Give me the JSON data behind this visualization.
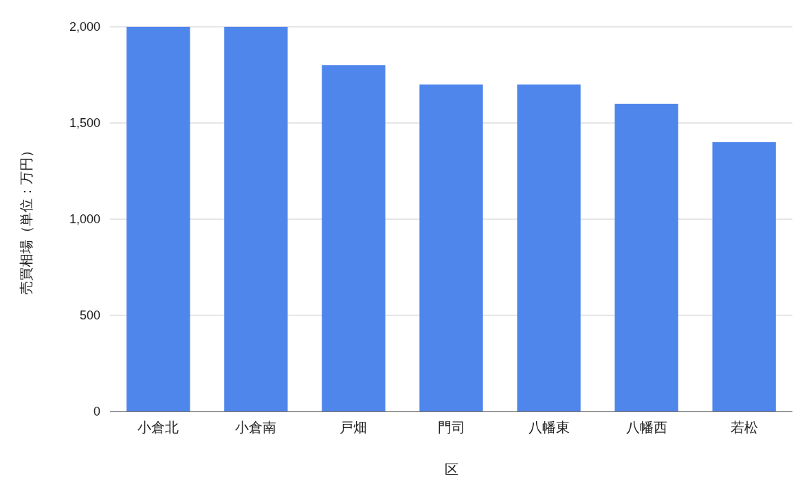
{
  "chart_data": {
    "type": "bar",
    "xlabel": "区",
    "ylabel": "売買相場（単位：万円）",
    "categories": [
      "小倉北",
      "小倉南",
      "戸畑",
      "門司",
      "八幡東",
      "八幡西",
      "若松"
    ],
    "values": [
      2000,
      2000,
      1800,
      1700,
      1700,
      1600,
      1400
    ],
    "color": "#4f86ec",
    "ylim": [
      0,
      2000
    ],
    "yticks": [
      {
        "value": 0,
        "label": "0"
      },
      {
        "value": 500,
        "label": "500"
      },
      {
        "value": 1000,
        "label": "1,000"
      },
      {
        "value": 1500,
        "label": "1,500"
      },
      {
        "value": 2000,
        "label": "2,000"
      }
    ],
    "grid": "y"
  }
}
